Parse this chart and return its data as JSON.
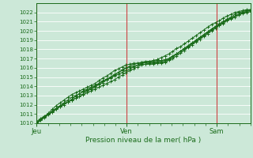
{
  "title": "Pression niveau de la mer( hPa )",
  "ylim": [
    1010,
    1023
  ],
  "yticks": [
    1010,
    1011,
    1012,
    1013,
    1014,
    1015,
    1016,
    1017,
    1018,
    1019,
    1020,
    1021,
    1022
  ],
  "background_color": "#cce8d8",
  "grid_color": "#ffffff",
  "line_color": "#1a6b1a",
  "vline_color": "#cc4444",
  "day_labels": [
    "Jeu",
    "Ven",
    "Sam"
  ],
  "day_positions": [
    0,
    48,
    96
  ],
  "total_hours": 114,
  "lines": [
    [
      1010.2,
      1010.5,
      1010.8,
      1011.0,
      1011.2,
      1011.5,
      1011.8,
      1012.0,
      1012.3,
      1012.6,
      1012.9,
      1013.2,
      1013.5,
      1013.7,
      1013.9,
      1014.1,
      1014.3,
      1014.5,
      1014.7,
      1014.9,
      1015.1,
      1015.3,
      1015.5,
      1015.7,
      1015.9,
      1016.1,
      1016.3,
      1016.5,
      1016.6,
      1016.7,
      1016.7,
      1016.8,
      1016.8,
      1016.9,
      1017.0,
      1017.2,
      1017.5,
      1017.8,
      1018.0,
      1018.3,
      1018.6,
      1018.9,
      1019.2,
      1019.5,
      1019.8,
      1020.1,
      1020.4,
      1020.7,
      1021.0,
      1021.3,
      1021.5,
      1021.8,
      1022.0,
      1022.1,
      1022.2,
      1022.3
    ],
    [
      1010.1,
      1010.4,
      1010.7,
      1011.0,
      1011.3,
      1011.6,
      1011.9,
      1012.2,
      1012.5,
      1012.8,
      1013.0,
      1013.2,
      1013.4,
      1013.6,
      1013.8,
      1014.0,
      1014.3,
      1014.6,
      1014.8,
      1015.0,
      1015.2,
      1015.5,
      1015.7,
      1016.0,
      1016.1,
      1016.2,
      1016.3,
      1016.4,
      1016.4,
      1016.4,
      1016.4,
      1016.5,
      1016.5,
      1016.6,
      1016.8,
      1017.0,
      1017.3,
      1017.6,
      1017.9,
      1018.2,
      1018.5,
      1018.8,
      1019.1,
      1019.4,
      1019.7,
      1020.0,
      1020.3,
      1020.6,
      1020.9,
      1021.2,
      1021.4,
      1021.6,
      1021.8,
      1022.0,
      1022.1,
      1022.2
    ],
    [
      1010.0,
      1010.3,
      1010.6,
      1010.9,
      1011.2,
      1011.5,
      1011.8,
      1012.1,
      1012.3,
      1012.5,
      1012.7,
      1012.9,
      1013.1,
      1013.3,
      1013.5,
      1013.7,
      1013.9,
      1014.1,
      1014.3,
      1014.5,
      1014.7,
      1015.0,
      1015.2,
      1015.5,
      1015.7,
      1015.9,
      1016.1,
      1016.3,
      1016.4,
      1016.5,
      1016.5,
      1016.6,
      1016.6,
      1016.7,
      1016.9,
      1017.2,
      1017.5,
      1017.8,
      1018.1,
      1018.4,
      1018.7,
      1019.0,
      1019.3,
      1019.6,
      1019.9,
      1020.2,
      1020.5,
      1020.8,
      1021.0,
      1021.2,
      1021.4,
      1021.6,
      1021.8,
      1022.0,
      1022.1,
      1022.2
    ],
    [
      1010.1,
      1010.4,
      1010.7,
      1011.0,
      1011.3,
      1011.6,
      1011.9,
      1012.1,
      1012.3,
      1012.5,
      1012.7,
      1012.9,
      1013.2,
      1013.5,
      1013.7,
      1013.9,
      1014.2,
      1014.4,
      1014.7,
      1015.0,
      1015.3,
      1015.5,
      1015.8,
      1016.0,
      1016.2,
      1016.4,
      1016.5,
      1016.6,
      1016.6,
      1016.6,
      1016.6,
      1016.7,
      1016.7,
      1016.8,
      1017.0,
      1017.3,
      1017.5,
      1017.8,
      1018.1,
      1018.4,
      1018.7,
      1019.0,
      1019.3,
      1019.6,
      1019.9,
      1020.2,
      1020.4,
      1020.6,
      1020.8,
      1021.1,
      1021.3,
      1021.5,
      1021.7,
      1021.9,
      1022.0,
      1022.1
    ],
    [
      1010.0,
      1010.3,
      1010.7,
      1011.1,
      1011.5,
      1011.9,
      1012.2,
      1012.5,
      1012.8,
      1013.1,
      1013.3,
      1013.5,
      1013.7,
      1013.9,
      1014.1,
      1014.3,
      1014.6,
      1014.9,
      1015.1,
      1015.4,
      1015.7,
      1015.9,
      1016.1,
      1016.3,
      1016.4,
      1016.5,
      1016.5,
      1016.6,
      1016.7,
      1016.7,
      1016.8,
      1016.9,
      1017.1,
      1017.3,
      1017.5,
      1017.8,
      1018.1,
      1018.3,
      1018.6,
      1018.9,
      1019.2,
      1019.5,
      1019.8,
      1020.1,
      1020.4,
      1020.7,
      1020.9,
      1021.1,
      1021.4,
      1021.6,
      1021.8,
      1022.0,
      1022.1,
      1022.2,
      1022.3,
      1022.3
    ]
  ]
}
